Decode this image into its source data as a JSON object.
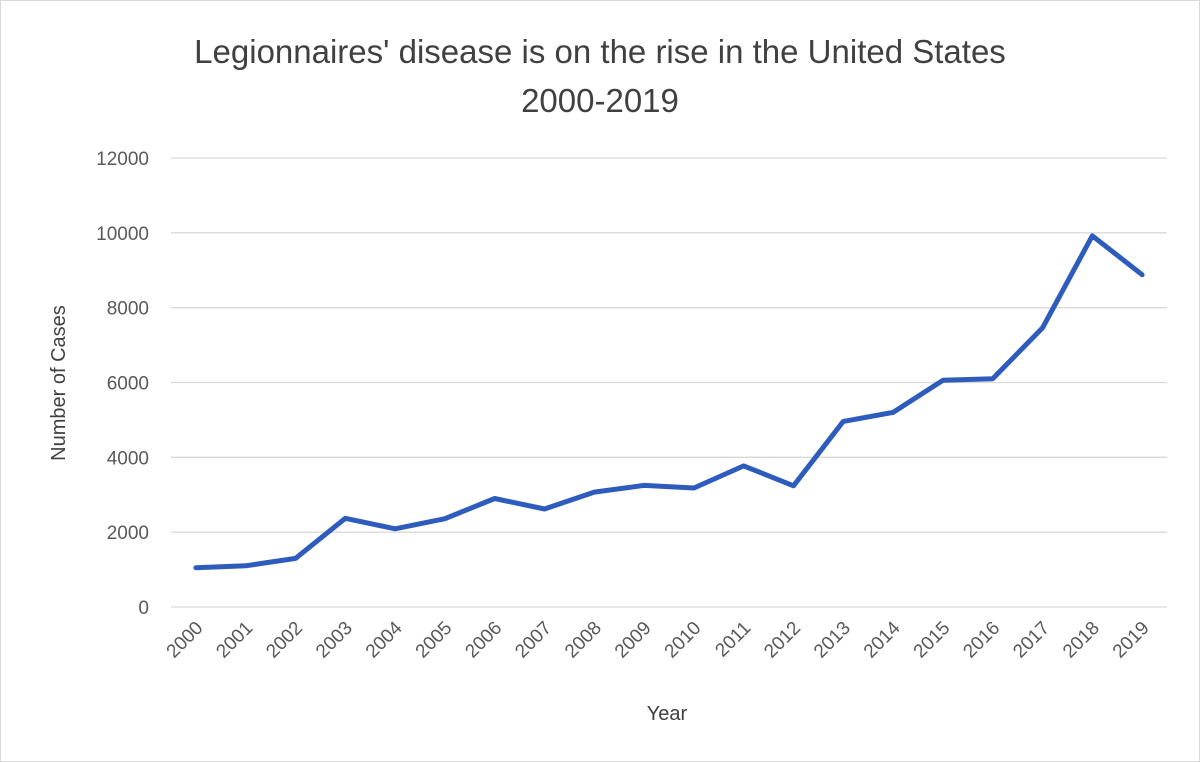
{
  "chart_data": {
    "type": "line",
    "title": "Legionnaires' disease is on the rise in the United States",
    "subtitle": "2000-2019",
    "xlabel": "Year",
    "ylabel": "Number of Cases",
    "ylim": [
      0,
      12000
    ],
    "yticks": [
      "0",
      "2000",
      "4000",
      "6000",
      "8000",
      "10000",
      "12000"
    ],
    "grid": true,
    "legend": "none",
    "categories": [
      "2000",
      "2001",
      "2002",
      "2003",
      "2004",
      "2005",
      "2006",
      "2007",
      "2008",
      "2009",
      "2010",
      "2011",
      "2012",
      "2013",
      "2014",
      "2015",
      "2016",
      "2017",
      "2018",
      "2019"
    ],
    "series": [
      {
        "color": "#2e5cbc",
        "values": [
          1050,
          1100,
          1300,
          2370,
          2090,
          2360,
          2900,
          2620,
          3070,
          3250,
          3180,
          3770,
          3240,
          4960,
          5200,
          6060,
          6100,
          7460,
          9920,
          8880
        ]
      }
    ]
  }
}
